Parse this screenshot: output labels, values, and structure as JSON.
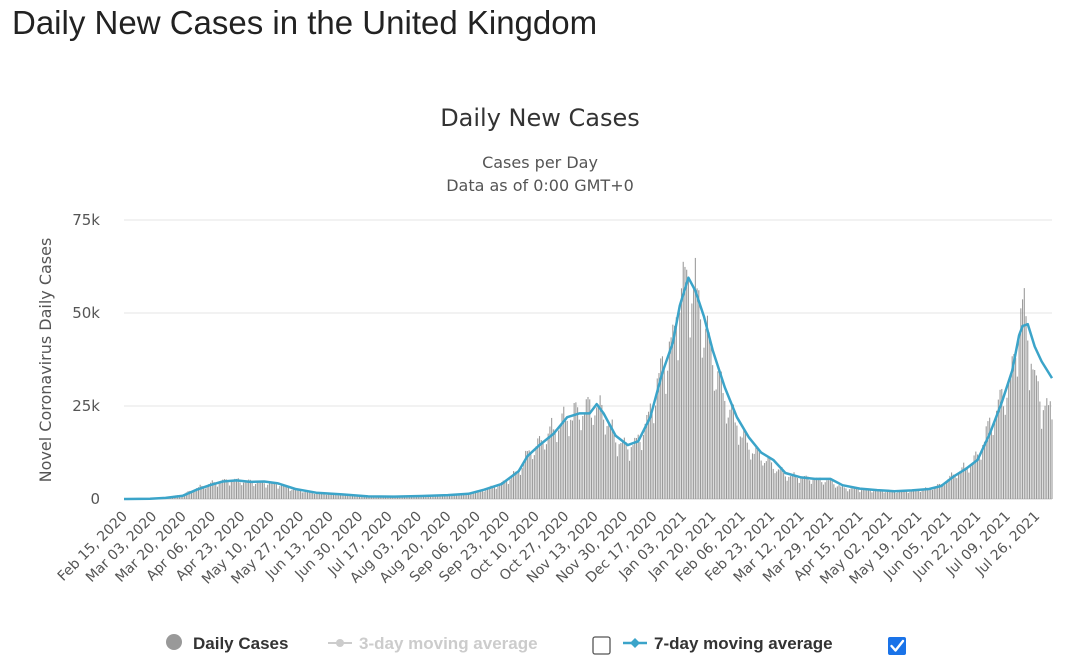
{
  "page": {
    "title": "Daily New Cases in the United Kingdom"
  },
  "chart_data": {
    "type": "bar",
    "title": "Daily New Cases",
    "subtitle": "Cases per Day",
    "subtitle2": "Data as of 0:00 GMT+0",
    "ylabel": "Novel Coronavirus Daily Cases",
    "xlabel": "",
    "ylim": [
      0,
      75000
    ],
    "yticks": [
      0,
      25000,
      50000,
      75000
    ],
    "ytick_labels": [
      "0",
      "25k",
      "50k",
      "75k"
    ],
    "grid": true,
    "legend_position": "bottom",
    "x_range": [
      "2020-02-15",
      "2021-08-04"
    ],
    "xtick_labels": [
      "Feb 15, 2020",
      "Mar 03, 2020",
      "Mar 20, 2020",
      "Apr 06, 2020",
      "Apr 23, 2020",
      "May 10, 2020",
      "May 27, 2020",
      "Jun 13, 2020",
      "Jun 30, 2020",
      "Jul 17, 2020",
      "Aug 03, 2020",
      "Aug 20, 2020",
      "Sep 06, 2020",
      "Sep 23, 2020",
      "Oct 10, 2020",
      "Oct 27, 2020",
      "Nov 13, 2020",
      "Nov 30, 2020",
      "Dec 17, 2020",
      "Jan 03, 2021",
      "Jan 20, 2021",
      "Feb 06, 2021",
      "Feb 23, 2021",
      "Mar 12, 2021",
      "Mar 29, 2021",
      "Apr 15, 2021",
      "May 02, 2021",
      "May 19, 2021",
      "Jun 05, 2021",
      "Jun 22, 2021",
      "Jul 09, 2021",
      "Jul 26, 2021"
    ],
    "series": [
      {
        "name": "Daily Cases",
        "color": "#999999",
        "visible": true,
        "points": [
          [
            "2020-02-15",
            0
          ],
          [
            "2020-03-01",
            100
          ],
          [
            "2020-03-10",
            400
          ],
          [
            "2020-03-20",
            1200
          ],
          [
            "2020-03-28",
            2900
          ],
          [
            "2020-04-05",
            4200
          ],
          [
            "2020-04-12",
            4800
          ],
          [
            "2020-04-20",
            5000
          ],
          [
            "2020-04-28",
            4700
          ],
          [
            "2020-05-06",
            4300
          ],
          [
            "2020-05-14",
            3900
          ],
          [
            "2020-05-24",
            2500
          ],
          [
            "2020-06-05",
            1700
          ],
          [
            "2020-06-20",
            1200
          ],
          [
            "2020-07-05",
            750
          ],
          [
            "2020-07-20",
            650
          ],
          [
            "2020-08-05",
            850
          ],
          [
            "2020-08-20",
            1100
          ],
          [
            "2020-09-01",
            1500
          ],
          [
            "2020-09-10",
            2600
          ],
          [
            "2020-09-20",
            4100
          ],
          [
            "2020-09-30",
            7500
          ],
          [
            "2020-10-05",
            12000
          ],
          [
            "2020-10-12",
            15000
          ],
          [
            "2020-10-20",
            19000
          ],
          [
            "2020-10-28",
            22000
          ],
          [
            "2020-11-04",
            23500
          ],
          [
            "2020-11-12",
            25000
          ],
          [
            "2020-11-18",
            23500
          ],
          [
            "2020-11-25",
            16000
          ],
          [
            "2020-12-02",
            14000
          ],
          [
            "2020-12-08",
            15500
          ],
          [
            "2020-12-15",
            23000
          ],
          [
            "2020-12-22",
            36000
          ],
          [
            "2020-12-28",
            42000
          ],
          [
            "2021-01-01",
            55000
          ],
          [
            "2021-01-06",
            60000
          ],
          [
            "2021-01-10",
            56000
          ],
          [
            "2021-01-15",
            47000
          ],
          [
            "2021-01-20",
            38000
          ],
          [
            "2021-01-27",
            27000
          ],
          [
            "2021-02-03",
            20000
          ],
          [
            "2021-02-10",
            14000
          ],
          [
            "2021-02-17",
            11500
          ],
          [
            "2021-02-24",
            9000
          ],
          [
            "2021-03-03",
            6500
          ],
          [
            "2021-03-12",
            5800
          ],
          [
            "2021-03-20",
            5300
          ],
          [
            "2021-03-29",
            4800
          ],
          [
            "2021-04-05",
            3000
          ],
          [
            "2021-04-15",
            2600
          ],
          [
            "2021-04-25",
            2300
          ],
          [
            "2021-05-05",
            2100
          ],
          [
            "2021-05-15",
            2200
          ],
          [
            "2021-05-25",
            2800
          ],
          [
            "2021-06-01",
            3800
          ],
          [
            "2021-06-08",
            6500
          ],
          [
            "2021-06-15",
            8500
          ],
          [
            "2021-06-22",
            11500
          ],
          [
            "2021-06-29",
            20000
          ],
          [
            "2021-07-06",
            27000
          ],
          [
            "2021-07-12",
            33000
          ],
          [
            "2021-07-16",
            48000
          ],
          [
            "2021-07-18",
            52000
          ],
          [
            "2021-07-21",
            44000
          ],
          [
            "2021-07-25",
            32000
          ],
          [
            "2021-07-29",
            26000
          ],
          [
            "2021-08-04",
            23000
          ]
        ]
      },
      {
        "name": "3-day moving average",
        "color": "#cccccc",
        "visible": false
      },
      {
        "name": "7-day moving average",
        "color": "#3ba4c9",
        "visible": true,
        "points": [
          [
            "2020-02-15",
            0
          ],
          [
            "2020-03-01",
            50
          ],
          [
            "2020-03-10",
            300
          ],
          [
            "2020-03-20",
            900
          ],
          [
            "2020-03-28",
            2500
          ],
          [
            "2020-04-05",
            3800
          ],
          [
            "2020-04-12",
            4700
          ],
          [
            "2020-04-20",
            5000
          ],
          [
            "2020-04-28",
            4600
          ],
          [
            "2020-05-06",
            4700
          ],
          [
            "2020-05-14",
            4200
          ],
          [
            "2020-05-24",
            2700
          ],
          [
            "2020-06-05",
            1700
          ],
          [
            "2020-06-20",
            1250
          ],
          [
            "2020-07-05",
            700
          ],
          [
            "2020-07-20",
            650
          ],
          [
            "2020-08-05",
            800
          ],
          [
            "2020-08-20",
            1050
          ],
          [
            "2020-09-01",
            1400
          ],
          [
            "2020-09-10",
            2500
          ],
          [
            "2020-09-20",
            4000
          ],
          [
            "2020-09-30",
            7500
          ],
          [
            "2020-10-05",
            11500
          ],
          [
            "2020-10-12",
            14500
          ],
          [
            "2020-10-20",
            17500
          ],
          [
            "2020-10-28",
            22000
          ],
          [
            "2020-11-04",
            23000
          ],
          [
            "2020-11-10",
            23000
          ],
          [
            "2020-11-14",
            25500
          ],
          [
            "2020-11-18",
            23000
          ],
          [
            "2020-11-25",
            17000
          ],
          [
            "2020-12-02",
            14500
          ],
          [
            "2020-12-08",
            15500
          ],
          [
            "2020-12-15",
            22000
          ],
          [
            "2020-12-22",
            34000
          ],
          [
            "2020-12-28",
            42000
          ],
          [
            "2021-01-01",
            52000
          ],
          [
            "2021-01-06",
            59500
          ],
          [
            "2021-01-10",
            56000
          ],
          [
            "2021-01-15",
            49000
          ],
          [
            "2021-01-20",
            40000
          ],
          [
            "2021-01-27",
            30000
          ],
          [
            "2021-02-03",
            22000
          ],
          [
            "2021-02-10",
            16500
          ],
          [
            "2021-02-17",
            12500
          ],
          [
            "2021-02-24",
            10500
          ],
          [
            "2021-03-03",
            7000
          ],
          [
            "2021-03-12",
            5800
          ],
          [
            "2021-03-20",
            5400
          ],
          [
            "2021-03-29",
            5400
          ],
          [
            "2021-04-05",
            3700
          ],
          [
            "2021-04-15",
            2800
          ],
          [
            "2021-04-25",
            2400
          ],
          [
            "2021-05-05",
            2100
          ],
          [
            "2021-05-15",
            2300
          ],
          [
            "2021-05-25",
            2700
          ],
          [
            "2021-06-01",
            3500
          ],
          [
            "2021-06-08",
            6000
          ],
          [
            "2021-06-15",
            8000
          ],
          [
            "2021-06-22",
            10500
          ],
          [
            "2021-06-29",
            17500
          ],
          [
            "2021-07-06",
            26000
          ],
          [
            "2021-07-12",
            34500
          ],
          [
            "2021-07-16",
            44000
          ],
          [
            "2021-07-18",
            46500
          ],
          [
            "2021-07-21",
            47000
          ],
          [
            "2021-07-25",
            41000
          ],
          [
            "2021-07-29",
            37000
          ],
          [
            "2021-08-04",
            32500
          ]
        ]
      }
    ]
  }
}
